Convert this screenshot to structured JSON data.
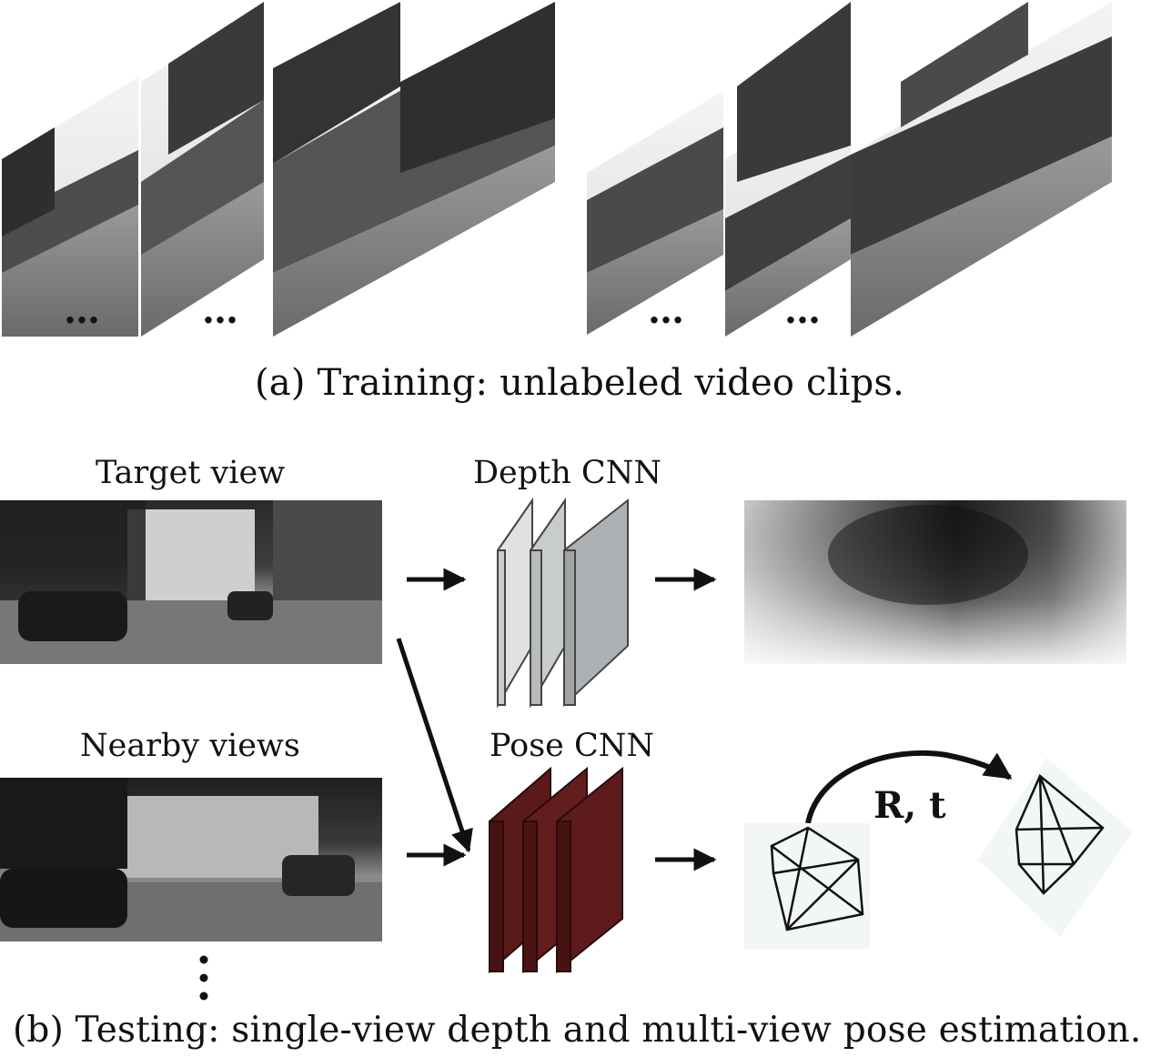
{
  "captions": {
    "a": "(a) Training: unlabeled video clips.",
    "b": "(b) Testing: single-view depth and multi-view pose estimation."
  },
  "labels": {
    "target_view": "Target view",
    "nearby_views": "Nearby views",
    "depth_cnn": "Depth CNN",
    "pose_cnn": "Pose CNN",
    "pose_output": "R, t"
  },
  "ellipsis": "…",
  "colors": {
    "depth_cnn_layers": "#b9bcbe",
    "pose_cnn_layers": "#5a1a1a",
    "arrow": "#111111"
  }
}
